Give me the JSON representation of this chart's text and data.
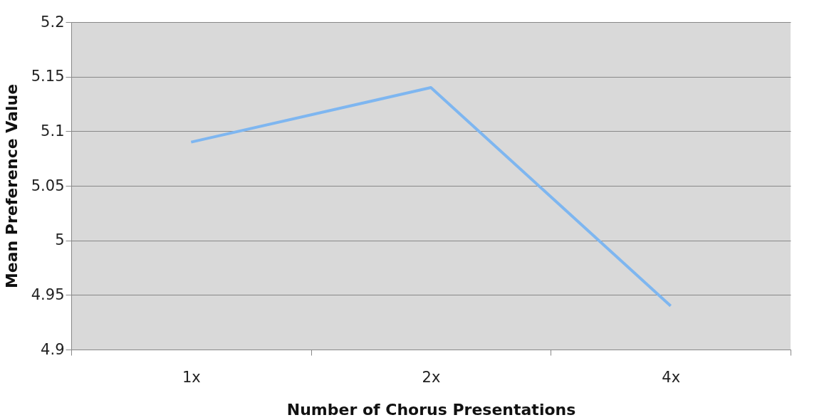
{
  "chart_data": {
    "type": "line",
    "xlabel": "Number of Chorus Presentations",
    "ylabel": "Mean Preference Value",
    "categories": [
      "1x",
      "2x",
      "4x"
    ],
    "series": [
      {
        "color": "#7eb6f0",
        "values": [
          5.09,
          5.14,
          4.94
        ]
      }
    ],
    "ylim": [
      4.9,
      5.2
    ],
    "yticks": [
      4.9,
      4.95,
      5,
      5.05,
      5.1,
      5.15,
      5.2
    ],
    "grid": "y",
    "marker": "none",
    "line_style": "solid"
  }
}
